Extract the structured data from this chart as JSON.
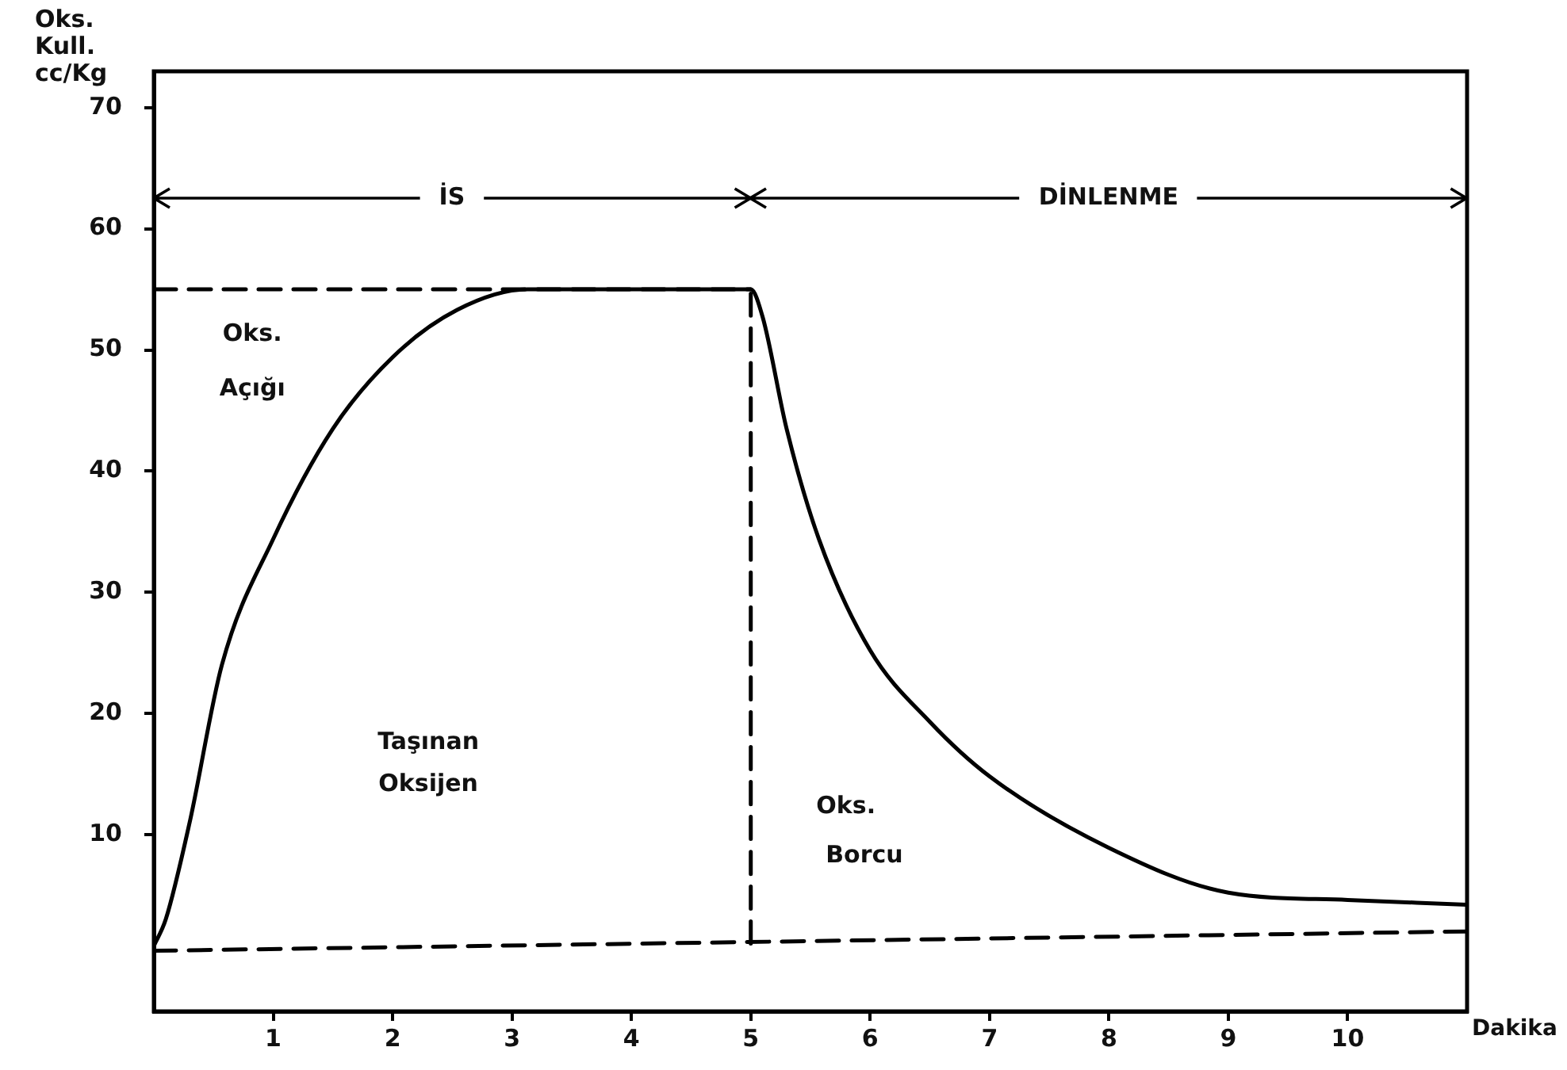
{
  "chart_data": {
    "type": "line",
    "ylabel": "Oks. Kull. cc/Kg",
    "xlabel": "Dakika",
    "xlim": [
      0,
      11
    ],
    "xticks": [
      1,
      2,
      3,
      4,
      5,
      6,
      7,
      8,
      9,
      10
    ],
    "ylim": [
      -4.6,
      73
    ],
    "yticks": [
      10,
      20,
      30,
      40,
      50,
      60,
      70
    ],
    "marker": "none",
    "legend": false,
    "grid": false,
    "series": [
      {
        "color": "#000000",
        "line_style": "solid",
        "x": [
          0,
          0.1,
          0.3,
          0.57,
          1,
          1.5,
          2,
          2.54,
          3.13,
          4,
          5,
          5.1,
          5.3,
          5.57,
          6,
          6.5,
          7,
          8,
          9,
          10,
          11
        ],
        "values": [
          0.8,
          3,
          11,
          24,
          34.4,
          43.5,
          49.4,
          53.3,
          55,
          55,
          55,
          52.7,
          43.5,
          34.4,
          25.2,
          19.3,
          14.8,
          8.9,
          5.2,
          4.6,
          4.2
        ]
      },
      {
        "color": "#000000",
        "line_style": "dashed",
        "x": [
          0,
          11
        ],
        "values": [
          0.4,
          2
        ]
      },
      {
        "color": "#000000",
        "line_style": "dashed",
        "x": [
          0,
          5
        ],
        "values": [
          55,
          55
        ]
      },
      {
        "color": "#000000",
        "line_style": "dashed",
        "x": [
          5,
          5
        ],
        "values": [
          1,
          55
        ]
      }
    ],
    "annotations": [
      "İS",
      "DİNLENME",
      "Oks.",
      "Açığı",
      "Taşınan",
      "Oksijen",
      "Oks.",
      "Borcu"
    ]
  }
}
